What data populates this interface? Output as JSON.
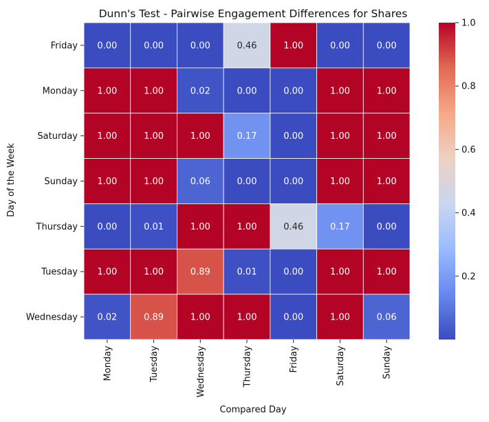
{
  "chart_data": {
    "type": "heatmap",
    "title": "Dunn's Test - Pairwise Engagement Differences for Shares",
    "xlabel": "Compared Day",
    "ylabel": "Day of the Week",
    "x_categories": [
      "Monday",
      "Tuesday",
      "Wednesday",
      "Thursday",
      "Friday",
      "Saturday",
      "Sunday"
    ],
    "y_categories": [
      "Friday",
      "Monday",
      "Saturday",
      "Sunday",
      "Thursday",
      "Tuesday",
      "Wednesday"
    ],
    "values": [
      [
        0.0,
        0.0,
        0.0,
        0.46,
        1.0,
        0.0,
        0.0
      ],
      [
        1.0,
        1.0,
        0.02,
        0.0,
        0.0,
        1.0,
        1.0
      ],
      [
        1.0,
        1.0,
        1.0,
        0.17,
        0.0,
        1.0,
        1.0
      ],
      [
        1.0,
        1.0,
        0.06,
        0.0,
        0.0,
        1.0,
        1.0
      ],
      [
        0.0,
        0.01,
        1.0,
        1.0,
        0.46,
        0.17,
        0.0
      ],
      [
        1.0,
        1.0,
        0.89,
        0.01,
        0.0,
        1.0,
        1.0
      ],
      [
        0.02,
        0.89,
        1.0,
        1.0,
        0.0,
        1.0,
        0.06
      ]
    ],
    "value_labels": [
      [
        "0.00",
        "0.00",
        "0.00",
        "0.46",
        "1.00",
        "0.00",
        "0.00"
      ],
      [
        "1.00",
        "1.00",
        "0.02",
        "0.00",
        "0.00",
        "1.00",
        "1.00"
      ],
      [
        "1.00",
        "1.00",
        "1.00",
        "0.17",
        "0.00",
        "1.00",
        "1.00"
      ],
      [
        "1.00",
        "1.00",
        "0.06",
        "0.00",
        "0.00",
        "1.00",
        "1.00"
      ],
      [
        "0.00",
        "0.01",
        "1.00",
        "1.00",
        "0.46",
        "0.17",
        "0.00"
      ],
      [
        "1.00",
        "1.00",
        "0.89",
        "0.01",
        "0.00",
        "1.00",
        "1.00"
      ],
      [
        "0.02",
        "0.89",
        "1.00",
        "1.00",
        "0.00",
        "1.00",
        "0.06"
      ]
    ],
    "colormap": "coolwarm",
    "colormap_stops": [
      "#3b4cc0",
      "#6788ee",
      "#9abbff",
      "#c9d7f0",
      "#edd1c2",
      "#f7a889",
      "#e26952",
      "#b40426"
    ],
    "vmin": 0.0,
    "vmax": 1.0,
    "colorbar_ticks": [
      0.2,
      0.4,
      0.6,
      0.8,
      1.0
    ],
    "colorbar_tick_labels": [
      "0.2",
      "0.4",
      "0.6",
      "0.8",
      "1.0"
    ],
    "grid_line_color": "#ffffff",
    "grid": false,
    "legend": "colorbar-right"
  }
}
